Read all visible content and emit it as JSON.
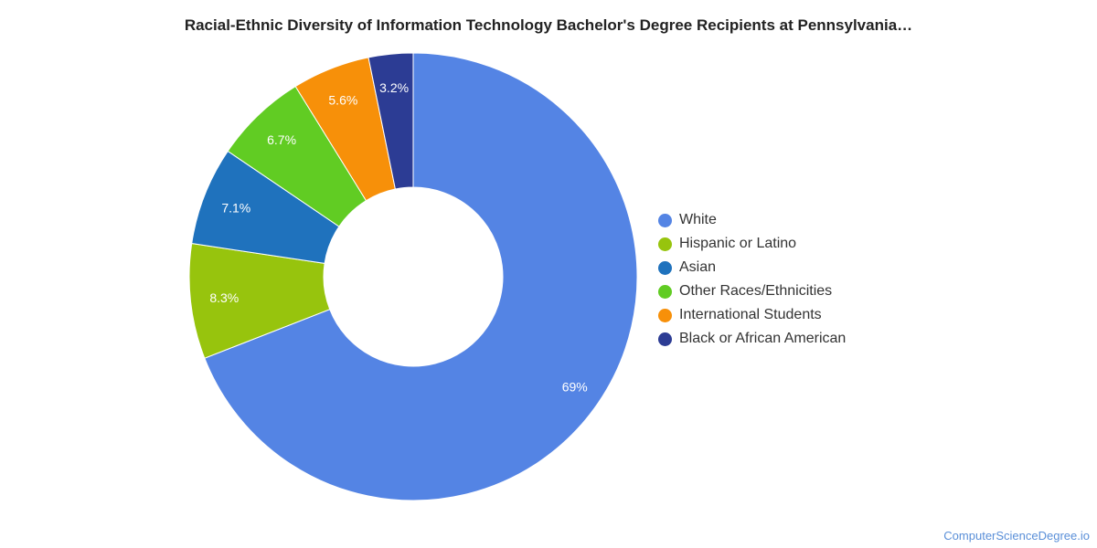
{
  "chart_data": {
    "type": "pie",
    "title": "Racial-Ethnic Diversity of Information Technology Bachelor's Degree Recipients at Pennsylvania…",
    "donut": true,
    "legend_position": "right",
    "slices": [
      {
        "label": "White",
        "value": 69,
        "display": "69%",
        "color": "#5484e4"
      },
      {
        "label": "Hispanic or Latino",
        "value": 8.3,
        "display": "8.3%",
        "color": "#97c40d"
      },
      {
        "label": "Asian",
        "value": 7.1,
        "display": "7.1%",
        "color": "#1f72bd"
      },
      {
        "label": "Other Races/Ethnicities",
        "value": 6.7,
        "display": "6.7%",
        "color": "#61cc23"
      },
      {
        "label": "International Students",
        "value": 5.6,
        "display": "5.6%",
        "color": "#f79009"
      },
      {
        "label": "Black or African American",
        "value": 3.2,
        "display": "3.2%",
        "color": "#2c3c94"
      }
    ]
  },
  "credit": "ComputerScienceDegree.io"
}
